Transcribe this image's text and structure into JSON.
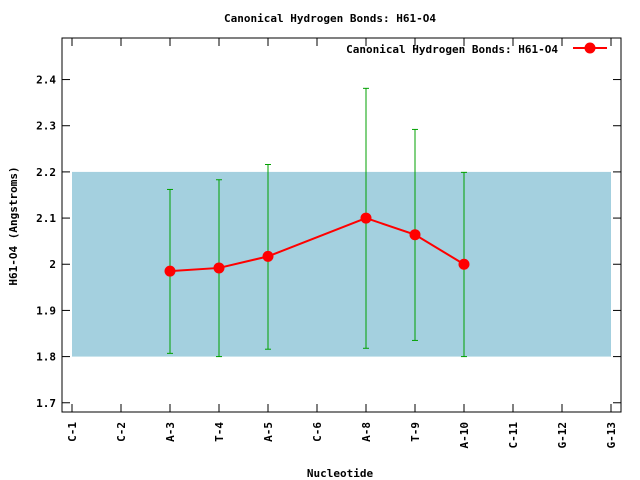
{
  "chart_data": {
    "type": "line",
    "title": "Canonical Hydrogen Bonds: H61-O4",
    "xlabel": "Nucleotide",
    "ylabel": "H61-O4 (Angstroms)",
    "categories": [
      "C-1",
      "C-2",
      "A-3",
      "T-4",
      "A-5",
      "C-6",
      "A-8",
      "T-9",
      "A-10",
      "C-11",
      "G-12",
      "G-13"
    ],
    "ylim": [
      1.68,
      2.49
    ],
    "yticks": [
      1.7,
      1.8,
      1.9,
      2.0,
      2.1,
      2.2,
      2.3,
      2.4
    ],
    "ytick_labels": [
      "1.7",
      "1.8",
      "1.9",
      "2",
      "2.1",
      "2.2",
      "2.3",
      "2.4"
    ],
    "reference_band": {
      "low": 1.8,
      "high": 2.2,
      "color": "#a4d0df"
    },
    "legend": {
      "position": "top-right"
    },
    "grid": false,
    "series": [
      {
        "name": "Canonical Hydrogen Bonds: H61-O4",
        "color": "#ff0000",
        "error_bar_color": "#00a000",
        "points": [
          {
            "x": "A-3",
            "y": 1.985,
            "err_low": 1.807,
            "err_high": 2.162
          },
          {
            "x": "T-4",
            "y": 1.992,
            "err_low": 1.8,
            "err_high": 2.183
          },
          {
            "x": "A-5",
            "y": 2.017,
            "err_low": 1.816,
            "err_high": 2.216
          },
          {
            "x": "A-8",
            "y": 2.1,
            "err_low": 1.818,
            "err_high": 2.381
          },
          {
            "x": "T-9",
            "y": 2.064,
            "err_low": 1.835,
            "err_high": 2.292
          },
          {
            "x": "A-10",
            "y": 2.0,
            "err_low": 1.8,
            "err_high": 2.199
          }
        ]
      }
    ]
  }
}
